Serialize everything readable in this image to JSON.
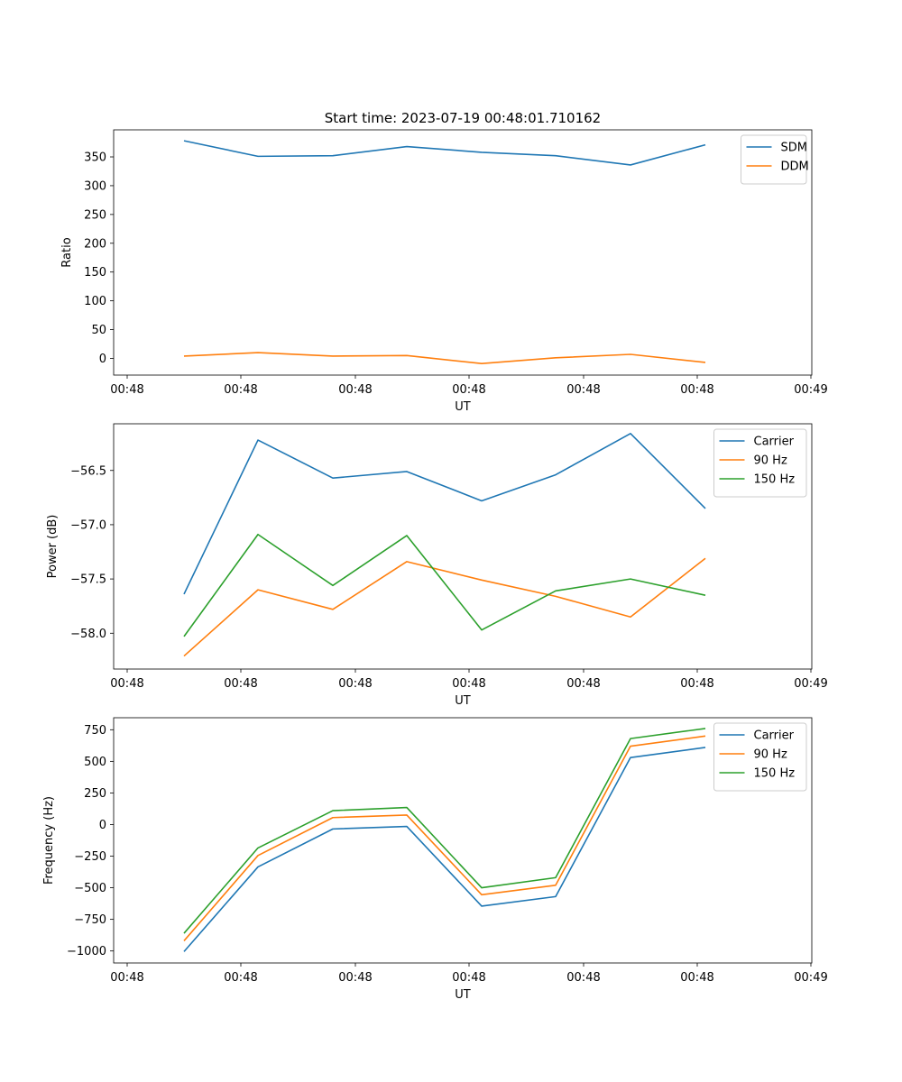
{
  "title": "Start time: 2023-07-19 00:48:01.710162",
  "colors": {
    "blue": "#1f77b4",
    "orange": "#ff7f0e",
    "green": "#2ca02c"
  },
  "chart_data": [
    {
      "type": "line",
      "xlabel": "UT",
      "ylabel": "Ratio",
      "x_tick_labels": [
        "00:48",
        "00:48",
        "00:48",
        "00:48",
        "00:48",
        "00:48",
        "00:49"
      ],
      "yticks": [
        0,
        50,
        100,
        150,
        200,
        250,
        300,
        350
      ],
      "ylim": [
        -29,
        397
      ],
      "legend_position": "upper-right",
      "series": [
        {
          "name": "SDM",
          "color": "blue",
          "values": [
            378,
            351,
            352,
            368,
            358,
            352,
            336,
            371
          ]
        },
        {
          "name": "DDM",
          "color": "orange",
          "values": [
            4,
            10,
            4,
            5,
            -9,
            1,
            7,
            -7
          ]
        }
      ]
    },
    {
      "type": "line",
      "xlabel": "UT",
      "ylabel": "Power (dB)",
      "x_tick_labels": [
        "00:48",
        "00:48",
        "00:48",
        "00:48",
        "00:48",
        "00:48",
        "00:49"
      ],
      "yticks": [
        -58.0,
        -57.5,
        -57.0,
        -56.5
      ],
      "ylim": [
        -58.33,
        -56.07
      ],
      "legend_position": "upper-right",
      "series": [
        {
          "name": "Carrier",
          "color": "blue",
          "values": [
            -57.64,
            -56.22,
            -56.57,
            -56.51,
            -56.78,
            -56.54,
            -56.16,
            -56.85
          ]
        },
        {
          "name": "90 Hz",
          "color": "orange",
          "values": [
            -58.21,
            -57.6,
            -57.78,
            -57.34,
            -57.51,
            -57.66,
            -57.85,
            -57.31
          ]
        },
        {
          "name": "150 Hz",
          "color": "green",
          "values": [
            -58.03,
            -57.09,
            -57.56,
            -57.1,
            -57.97,
            -57.61,
            -57.5,
            -57.65
          ]
        }
      ]
    },
    {
      "type": "line",
      "xlabel": "UT",
      "ylabel": "Frequency (Hz)",
      "x_tick_labels": [
        "00:48",
        "00:48",
        "00:48",
        "00:48",
        "00:48",
        "00:48",
        "00:49"
      ],
      "yticks": [
        -1000,
        -750,
        -500,
        -250,
        0,
        250,
        500,
        750
      ],
      "ylim": [
        -1095,
        845
      ],
      "legend_position": "upper-right",
      "series": [
        {
          "name": "Carrier",
          "color": "blue",
          "values": [
            -1005,
            -335,
            -35,
            -15,
            -645,
            -570,
            530,
            610
          ]
        },
        {
          "name": "90 Hz",
          "color": "orange",
          "values": [
            -920,
            -245,
            55,
            75,
            -555,
            -480,
            620,
            700
          ]
        },
        {
          "name": "150 Hz",
          "color": "green",
          "values": [
            -860,
            -185,
            110,
            135,
            -500,
            -420,
            680,
            760
          ]
        }
      ]
    }
  ]
}
